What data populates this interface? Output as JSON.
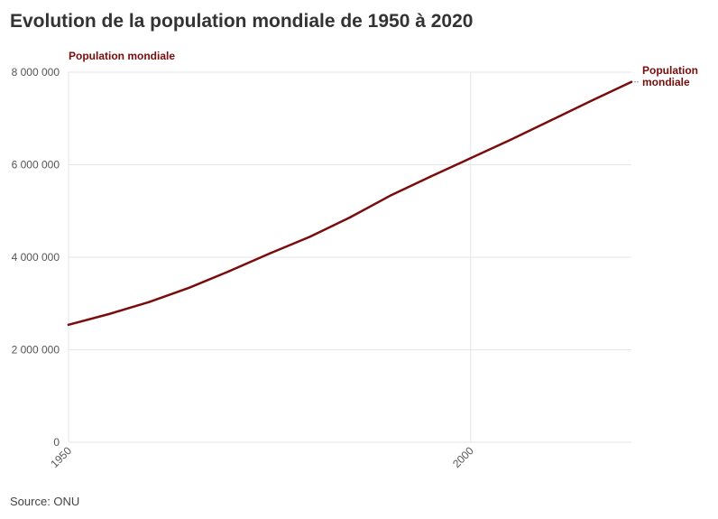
{
  "chart_data": {
    "type": "line",
    "title": "Evolution de la population mondiale de 1950 à 2020",
    "ylabel": "Population mondiale",
    "xlabel": "",
    "source": "Source: ONU",
    "x_ticks": [
      1950,
      2000
    ],
    "y_ticks": [
      {
        "value": 0,
        "label": "0"
      },
      {
        "value": 2000000,
        "label": "2 000 000"
      },
      {
        "value": 4000000,
        "label": "4 000 000"
      },
      {
        "value": 6000000,
        "label": "6 000 000"
      },
      {
        "value": 8000000,
        "label": "8 000 000"
      }
    ],
    "xlim": [
      1950,
      2020
    ],
    "ylim": [
      0,
      8000000
    ],
    "grid": true,
    "series": [
      {
        "name": "Population mondiale",
        "label_lines": [
          "Population",
          "mondiale"
        ],
        "color": "#7a0c0c",
        "x": [
          1950,
          1955,
          1960,
          1965,
          1970,
          1975,
          1980,
          1985,
          1990,
          1995,
          2000,
          2005,
          2010,
          2015,
          2020
        ],
        "values": [
          2540000,
          2770000,
          3030000,
          3340000,
          3700000,
          4080000,
          4440000,
          4860000,
          5330000,
          5740000,
          6140000,
          6540000,
          6960000,
          7380000,
          7790000
        ]
      }
    ]
  }
}
